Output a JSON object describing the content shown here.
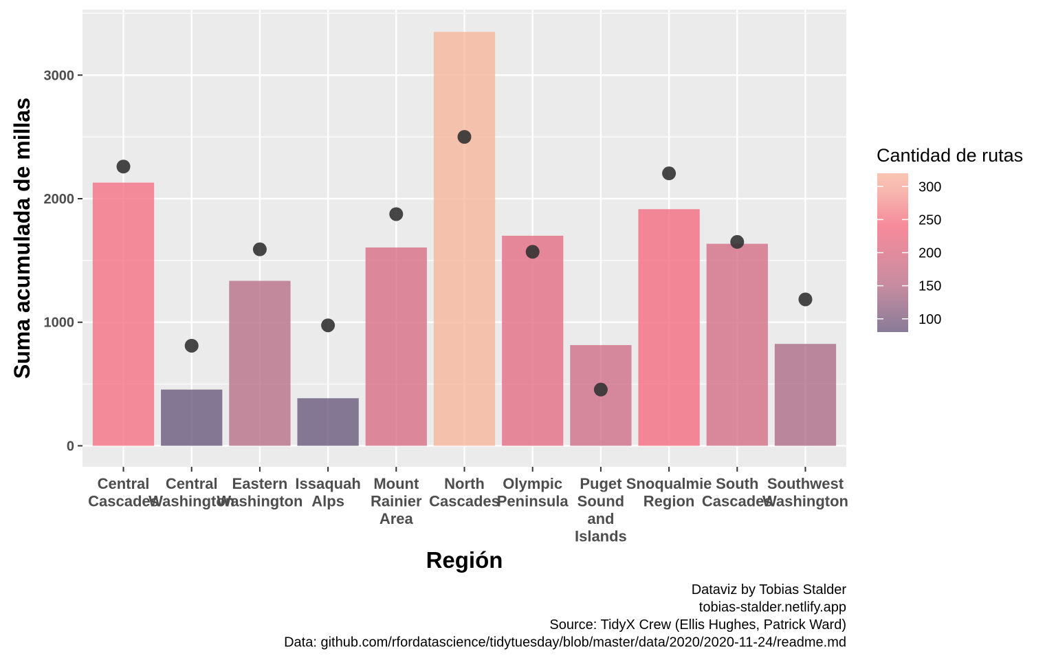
{
  "chart_data": {
    "type": "bar",
    "xlabel": "Región",
    "ylabel": "Suma acumulada de millas",
    "ylim": [
      -170,
      3530
    ],
    "yticks": [
      0,
      1000,
      2000,
      3000
    ],
    "grid": true,
    "legend_position": "right",
    "categories": [
      "Central Cascades",
      "Central Washington",
      "Eastern Washington",
      "Issaquah Alps",
      "Mount Rainier Area",
      "North Cascades",
      "Olympic Peninsula",
      "Puget Sound and Islands",
      "Snoqualmie Region",
      "South Cascades",
      "Southwest Washington"
    ],
    "category_label_lines": [
      [
        "Central",
        "Cascades"
      ],
      [
        "Central",
        "Washington"
      ],
      [
        "Eastern",
        "Washington"
      ],
      [
        "Issaquah",
        "Alps"
      ],
      [
        "Mount",
        "Rainier",
        "Area"
      ],
      [
        "North",
        "Cascades"
      ],
      [
        "Olympic",
        "Peninsula"
      ],
      [
        "Puget",
        "Sound",
        "and",
        "Islands"
      ],
      [
        "Snoqualmie",
        "Region"
      ],
      [
        "South",
        "Cascades"
      ],
      [
        "Southwest",
        "Washington"
      ]
    ],
    "bars": {
      "values": [
        2130,
        455,
        1335,
        385,
        1605,
        3350,
        1700,
        815,
        1915,
        1635,
        825
      ],
      "route_counts": [
        245,
        80,
        150,
        80,
        200,
        320,
        215,
        185,
        240,
        190,
        140
      ]
    },
    "points": {
      "values": [
        2260,
        810,
        1590,
        975,
        1875,
        2500,
        1570,
        455,
        2205,
        1650,
        1185
      ],
      "color": "#333333"
    },
    "color_scale": {
      "title": "Cantidad de rutas",
      "domain": [
        80,
        320
      ],
      "ticks": [
        100,
        150,
        200,
        250,
        300
      ],
      "stops": [
        {
          "value": 80,
          "color": "#6a5a7e"
        },
        {
          "value": 150,
          "color": "#b87088"
        },
        {
          "value": 200,
          "color": "#da6f86"
        },
        {
          "value": 240,
          "color": "#f46d81"
        },
        {
          "value": 290,
          "color": "#f5a29a"
        },
        {
          "value": 320,
          "color": "#f6b79e"
        }
      ]
    }
  },
  "caption": [
    "Dataviz by Tobias Stalder",
    "tobias-stalder.netlify.app",
    "Source: TidyX Crew (Ellis Hughes, Patrick Ward)",
    "Data: github.com/rfordatascience/tidytuesday/blob/master/data/2020/2020-11-24/readme.md"
  ],
  "colors": {
    "panel_background": "#ebebeb",
    "grid_line": "#ffffff"
  }
}
